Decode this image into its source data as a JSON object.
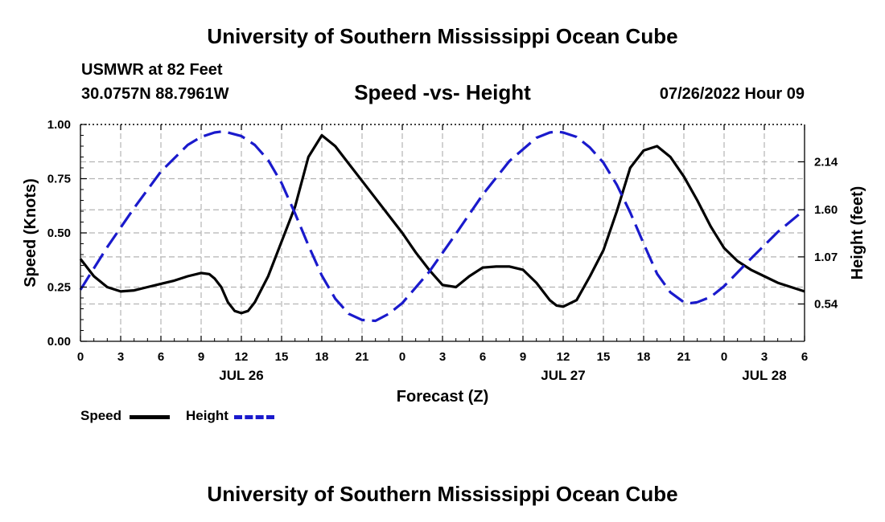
{
  "page": {
    "title": "University of Southern Mississippi Ocean Cube",
    "footer_title": "University of Southern Mississippi Ocean Cube",
    "station_name": "USMWR at 82 Feet",
    "station_coords": "30.0757N  88.7961W",
    "forecast_time": "07/26/2022 Hour 09"
  },
  "colors": {
    "speed": "#000000",
    "height": "#1a1acc",
    "grid": "#b4b4b4"
  },
  "chart_data": {
    "type": "line",
    "title": "Speed -vs- Height",
    "xlabel": "Forecast (Z)",
    "ylabel_left": "Speed (Knots)",
    "ylabel_right": "Height (feet)",
    "xlim": [
      0,
      54
    ],
    "ylim_left": [
      0,
      1.0
    ],
    "ylim_right": [
      0.12,
      2.56
    ],
    "x_ticks": [
      0,
      3,
      6,
      9,
      12,
      15,
      18,
      21,
      24,
      27,
      30,
      33,
      36,
      39,
      42,
      45,
      48,
      51,
      54
    ],
    "x_tick_labels": [
      "0",
      "3",
      "6",
      "9",
      "12",
      "15",
      "18",
      "21",
      "0",
      "3",
      "6",
      "9",
      "12",
      "15",
      "18",
      "21",
      "0",
      "3",
      "6"
    ],
    "date_labels": [
      {
        "x": 12,
        "label": "JUL 26"
      },
      {
        "x": 36,
        "label": "JUL 27"
      },
      {
        "x": 51,
        "label": "JUL 28"
      }
    ],
    "y_left_ticks": [
      0.0,
      0.25,
      0.5,
      0.75,
      1.0
    ],
    "y_left_tick_labels": [
      "0.00",
      "0.25",
      "0.50",
      "0.75",
      "1.00"
    ],
    "y_right_ticks": [
      0.54,
      1.07,
      1.6,
      2.14
    ],
    "y_right_tick_labels": [
      "0.54",
      "1.07",
      "1.60",
      "2.14"
    ],
    "grid": true,
    "legend_position": "bottom-left",
    "series": [
      {
        "name": "Speed",
        "axis": "left",
        "style": "solid",
        "x": [
          0,
          1,
          2,
          3,
          4,
          5,
          6,
          7,
          8,
          9,
          9.6,
          10,
          10.5,
          11,
          11.5,
          12,
          12.5,
          13,
          14,
          15,
          16,
          17,
          18,
          19,
          20,
          21,
          22,
          23,
          24,
          25,
          26,
          27,
          28,
          29,
          30,
          31,
          32,
          33,
          34,
          35,
          35.5,
          36,
          37,
          38,
          39,
          40,
          41,
          42,
          43,
          44,
          45,
          46,
          47,
          48,
          49,
          50,
          51,
          52,
          53,
          54
        ],
        "y": [
          0.38,
          0.3,
          0.25,
          0.23,
          0.235,
          0.25,
          0.265,
          0.28,
          0.3,
          0.315,
          0.31,
          0.29,
          0.25,
          0.18,
          0.14,
          0.13,
          0.14,
          0.18,
          0.3,
          0.46,
          0.62,
          0.85,
          0.95,
          0.9,
          0.82,
          0.74,
          0.66,
          0.58,
          0.5,
          0.41,
          0.33,
          0.26,
          0.25,
          0.3,
          0.34,
          0.345,
          0.345,
          0.33,
          0.27,
          0.19,
          0.165,
          0.16,
          0.19,
          0.3,
          0.42,
          0.6,
          0.8,
          0.88,
          0.9,
          0.85,
          0.76,
          0.65,
          0.53,
          0.43,
          0.37,
          0.33,
          0.3,
          0.27,
          0.25,
          0.23
        ]
      },
      {
        "name": "Height",
        "axis": "right",
        "style": "dashed",
        "x": [
          0,
          2,
          4,
          6,
          8,
          9,
          10,
          10.5,
          11,
          12,
          13,
          14,
          15,
          16,
          17,
          18,
          19,
          20,
          21,
          22,
          23,
          24,
          26,
          28,
          30,
          32,
          34,
          35,
          35.5,
          36,
          37,
          38,
          39,
          40,
          41,
          42,
          43,
          44,
          45,
          45.5,
          46,
          47,
          48,
          50,
          52,
          54
        ],
        "y": [
          0.7,
          1.18,
          1.62,
          2.03,
          2.33,
          2.42,
          2.47,
          2.48,
          2.47,
          2.43,
          2.33,
          2.16,
          1.9,
          1.56,
          1.2,
          0.86,
          0.6,
          0.43,
          0.36,
          0.35,
          0.43,
          0.55,
          0.9,
          1.33,
          1.77,
          2.15,
          2.41,
          2.47,
          2.48,
          2.47,
          2.42,
          2.3,
          2.13,
          1.88,
          1.57,
          1.22,
          0.88,
          0.67,
          0.56,
          0.55,
          0.56,
          0.62,
          0.74,
          1.05,
          1.35,
          1.6
        ]
      }
    ]
  }
}
